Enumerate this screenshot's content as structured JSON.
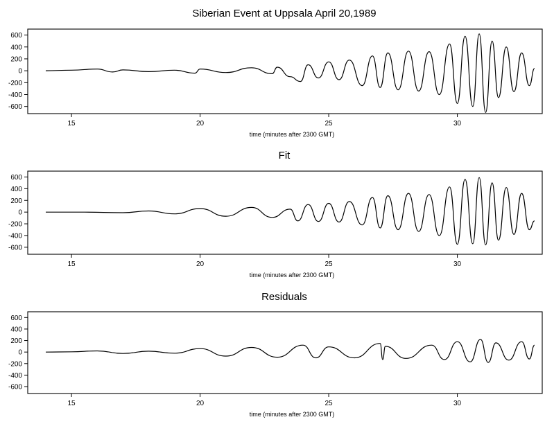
{
  "figure": {
    "panels": [
      {
        "title": "Siberian Event at Uppsala April 20,1989"
      },
      {
        "title": "Fit"
      },
      {
        "title": "Residuals"
      }
    ]
  },
  "chart_data": [
    {
      "type": "line",
      "title": "Siberian Event at Uppsala April 20,1989",
      "xlabel": "time (minutes after 2300 GMT)",
      "ylabel": "",
      "xlim": [
        13.3,
        33.3
      ],
      "ylim": [
        -720,
        700
      ],
      "xticks": [
        15,
        20,
        25,
        30
      ],
      "yticks": [
        -600,
        -400,
        -200,
        0,
        200,
        400,
        600
      ],
      "grid": false,
      "series": [
        {
          "x": [
            14.0,
            15.0,
            16.0,
            16.6,
            17.0,
            18.0,
            19.0,
            19.8,
            20.0,
            21.0,
            22.0,
            22.8,
            23.0,
            23.5,
            23.9,
            24.2,
            24.6,
            25.0,
            25.4,
            25.8,
            26.3,
            26.7,
            27.0,
            27.3,
            27.7,
            28.1,
            28.5,
            28.9,
            29.3,
            29.7,
            30.0,
            30.3,
            30.6,
            30.85,
            31.1,
            31.35,
            31.6,
            31.9,
            32.2,
            32.5,
            32.8,
            33.0
          ],
          "y": [
            0,
            10,
            30,
            -20,
            15,
            -15,
            10,
            -40,
            30,
            -30,
            50,
            -50,
            60,
            -100,
            -180,
            100,
            -120,
            150,
            -150,
            180,
            -250,
            250,
            -280,
            300,
            -320,
            330,
            -340,
            320,
            -400,
            450,
            -550,
            580,
            -600,
            620,
            -700,
            500,
            -450,
            400,
            -350,
            300,
            -250,
            40
          ]
        }
      ]
    },
    {
      "type": "line",
      "title": "Fit",
      "xlabel": "time (minutes after 2300 GMT)",
      "ylabel": "",
      "xlim": [
        13.3,
        33.3
      ],
      "ylim": [
        -720,
        700
      ],
      "xticks": [
        15,
        20,
        25,
        30
      ],
      "yticks": [
        -600,
        -400,
        -200,
        0,
        200,
        400,
        600
      ],
      "grid": false,
      "series": [
        {
          "x": [
            14.0,
            15.5,
            17.0,
            18.0,
            19.0,
            20.0,
            21.0,
            22.0,
            22.8,
            23.5,
            23.8,
            24.2,
            24.6,
            25.0,
            25.4,
            25.8,
            26.3,
            26.7,
            27.0,
            27.3,
            27.7,
            28.1,
            28.5,
            28.9,
            29.3,
            29.7,
            30.0,
            30.3,
            30.6,
            30.85,
            31.1,
            31.35,
            31.6,
            31.9,
            32.2,
            32.5,
            32.8,
            33.0
          ],
          "y": [
            0,
            0,
            -10,
            20,
            -30,
            60,
            -70,
            80,
            -90,
            50,
            -150,
            130,
            -160,
            150,
            -170,
            180,
            -220,
            250,
            -270,
            280,
            -300,
            320,
            -330,
            300,
            -400,
            430,
            -550,
            560,
            -540,
            590,
            -560,
            500,
            -480,
            420,
            -380,
            320,
            -300,
            -150
          ]
        }
      ]
    },
    {
      "type": "line",
      "title": "Residuals",
      "xlabel": "time (minutes after 2300 GMT)",
      "ylabel": "",
      "xlim": [
        13.3,
        33.3
      ],
      "ylim": [
        -720,
        700
      ],
      "xticks": [
        15,
        20,
        25,
        30
      ],
      "yticks": [
        -600,
        -400,
        -200,
        0,
        200,
        400,
        600
      ],
      "grid": false,
      "series": [
        {
          "x": [
            14.0,
            15.0,
            16.0,
            17.0,
            18.0,
            19.0,
            20.0,
            21.0,
            22.0,
            23.0,
            24.0,
            24.5,
            25.0,
            26.0,
            27.0,
            27.1,
            27.2,
            28.0,
            29.0,
            29.5,
            30.0,
            30.5,
            30.9,
            31.2,
            31.5,
            32.0,
            32.5,
            32.8,
            33.0
          ],
          "y": [
            0,
            5,
            20,
            -25,
            15,
            -20,
            60,
            -70,
            80,
            -90,
            120,
            -100,
            90,
            -100,
            150,
            -130,
            100,
            -110,
            120,
            -130,
            180,
            -170,
            220,
            -180,
            160,
            -140,
            180,
            -120,
            120
          ]
        }
      ]
    }
  ]
}
